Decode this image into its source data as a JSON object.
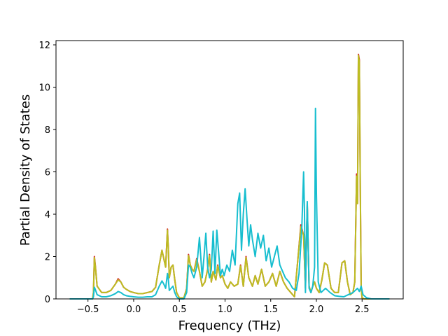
{
  "chart_data": {
    "type": "line",
    "title": "",
    "xlabel": "Frequency (THz)",
    "ylabel": "Partial Density of States",
    "xlim": [
      -0.85,
      2.95
    ],
    "ylim": [
      0,
      12.2
    ],
    "xticks": [
      -0.5,
      0.0,
      0.5,
      1.0,
      1.5,
      2.0,
      2.5
    ],
    "xtick_labels": [
      "−0.5",
      "0.0",
      "0.5",
      "1.0",
      "1.5",
      "2.0",
      "2.5"
    ],
    "yticks": [
      0,
      2,
      4,
      6,
      8,
      10,
      12
    ],
    "ytick_labels": [
      "0",
      "2",
      "4",
      "6",
      "8",
      "10",
      "12"
    ],
    "grid": false,
    "legend": "none",
    "series": [
      {
        "color": "#d62728",
        "x": [
          -0.7,
          -0.45,
          -0.44,
          -0.43,
          -0.42,
          -0.4,
          -0.35,
          -0.3,
          -0.25,
          -0.2,
          -0.17,
          -0.14,
          -0.11,
          -0.08,
          -0.04,
          0.0,
          0.05,
          0.1,
          0.15,
          0.2,
          0.24,
          0.28,
          0.31,
          0.33,
          0.35,
          0.37,
          0.38,
          0.39,
          0.41,
          0.43,
          0.45,
          0.47,
          0.5,
          0.55,
          0.58,
          0.6,
          0.62,
          0.64,
          0.66,
          0.69,
          0.72,
          0.75,
          0.78,
          0.81,
          0.83,
          0.85,
          0.87,
          0.9,
          0.92,
          0.95,
          0.97,
          1.0,
          1.03,
          1.06,
          1.1,
          1.14,
          1.17,
          1.2,
          1.23,
          1.26,
          1.28,
          1.3,
          1.33,
          1.36,
          1.4,
          1.44,
          1.48,
          1.52,
          1.56,
          1.6,
          1.64,
          1.68,
          1.72,
          1.76,
          1.8,
          1.83,
          1.86,
          1.88,
          1.9,
          1.92,
          1.94,
          1.96,
          1.98,
          2.0,
          2.03,
          2.06,
          2.09,
          2.12,
          2.16,
          2.2,
          2.24,
          2.28,
          2.31,
          2.34,
          2.37,
          2.4,
          2.42,
          2.44,
          2.45,
          2.46,
          2.47,
          2.48,
          2.49,
          2.5,
          2.52,
          2.55,
          2.6,
          2.7,
          2.8
        ],
        "values": [
          0,
          0,
          0.3,
          2.0,
          1.6,
          0.6,
          0.3,
          0.3,
          0.4,
          0.7,
          0.95,
          0.8,
          0.55,
          0.45,
          0.35,
          0.3,
          0.25,
          0.25,
          0.3,
          0.35,
          0.55,
          1.6,
          2.3,
          1.9,
          1.5,
          3.3,
          2.3,
          1.0,
          1.5,
          1.6,
          0.9,
          0.3,
          0.05,
          0.05,
          0.5,
          2.1,
          1.6,
          1.4,
          1.3,
          1.9,
          1.3,
          0.6,
          0.8,
          1.4,
          2.1,
          0.8,
          1.3,
          0.9,
          1.6,
          1.0,
          1.1,
          0.7,
          0.5,
          0.8,
          0.6,
          0.7,
          1.6,
          0.6,
          2.0,
          1.0,
          0.8,
          0.6,
          1.1,
          0.7,
          1.4,
          0.6,
          0.8,
          1.2,
          0.6,
          1.3,
          0.8,
          0.5,
          0.3,
          0.1,
          2.0,
          3.5,
          3.0,
          0.5,
          4.5,
          0.6,
          0.3,
          0.6,
          0.8,
          0.5,
          0.3,
          0.9,
          1.7,
          1.6,
          0.5,
          0.3,
          0.3,
          1.7,
          1.8,
          0.8,
          0.2,
          0.3,
          0.8,
          5.9,
          4.5,
          11.55,
          11.3,
          5.5,
          0.5,
          0.05,
          0,
          0,
          0,
          0,
          0
        ]
      },
      {
        "color": "#bcbd22",
        "x": [
          -0.7,
          -0.45,
          -0.44,
          -0.43,
          -0.42,
          -0.4,
          -0.35,
          -0.3,
          -0.25,
          -0.2,
          -0.17,
          -0.14,
          -0.11,
          -0.08,
          -0.04,
          0.0,
          0.05,
          0.1,
          0.15,
          0.2,
          0.24,
          0.28,
          0.31,
          0.33,
          0.35,
          0.37,
          0.38,
          0.39,
          0.41,
          0.43,
          0.45,
          0.47,
          0.5,
          0.55,
          0.58,
          0.6,
          0.62,
          0.64,
          0.66,
          0.69,
          0.72,
          0.75,
          0.78,
          0.81,
          0.83,
          0.85,
          0.87,
          0.9,
          0.92,
          0.95,
          0.97,
          1.0,
          1.03,
          1.06,
          1.1,
          1.14,
          1.17,
          1.2,
          1.23,
          1.26,
          1.28,
          1.3,
          1.33,
          1.36,
          1.4,
          1.44,
          1.48,
          1.52,
          1.56,
          1.6,
          1.64,
          1.68,
          1.72,
          1.76,
          1.8,
          1.83,
          1.86,
          1.88,
          1.9,
          1.92,
          1.94,
          1.96,
          1.98,
          2.0,
          2.03,
          2.06,
          2.09,
          2.12,
          2.16,
          2.2,
          2.24,
          2.28,
          2.31,
          2.34,
          2.37,
          2.4,
          2.42,
          2.44,
          2.45,
          2.46,
          2.47,
          2.48,
          2.49,
          2.5,
          2.52,
          2.55,
          2.6,
          2.7,
          2.8
        ],
        "values": [
          0,
          0,
          0.3,
          1.95,
          1.55,
          0.6,
          0.3,
          0.3,
          0.4,
          0.7,
          0.9,
          0.8,
          0.55,
          0.45,
          0.35,
          0.3,
          0.25,
          0.25,
          0.3,
          0.35,
          0.55,
          1.6,
          2.3,
          1.9,
          1.5,
          3.25,
          2.3,
          1.0,
          1.5,
          1.6,
          0.9,
          0.3,
          0.05,
          0.05,
          0.5,
          2.05,
          1.6,
          1.4,
          1.3,
          1.85,
          1.3,
          0.6,
          0.8,
          1.4,
          2.05,
          0.8,
          1.3,
          0.9,
          1.55,
          1.0,
          1.1,
          0.7,
          0.5,
          0.8,
          0.6,
          0.7,
          1.55,
          0.6,
          1.95,
          1.0,
          0.8,
          0.6,
          1.1,
          0.7,
          1.4,
          0.6,
          0.8,
          1.2,
          0.6,
          1.3,
          0.8,
          0.5,
          0.3,
          0.1,
          2.0,
          3.4,
          3.0,
          0.5,
          4.4,
          0.6,
          0.3,
          0.6,
          0.8,
          0.5,
          0.3,
          0.9,
          1.7,
          1.6,
          0.5,
          0.3,
          0.3,
          1.7,
          1.8,
          0.8,
          0.2,
          0.3,
          0.8,
          5.8,
          4.5,
          11.5,
          11.2,
          5.5,
          0.5,
          0.05,
          0,
          0,
          0,
          0,
          0
        ]
      },
      {
        "color": "#17becf",
        "x": [
          -0.7,
          -0.45,
          -0.44,
          -0.43,
          -0.42,
          -0.4,
          -0.35,
          -0.3,
          -0.25,
          -0.2,
          -0.17,
          -0.14,
          -0.11,
          -0.08,
          -0.04,
          0.0,
          0.05,
          0.1,
          0.15,
          0.2,
          0.24,
          0.28,
          0.31,
          0.33,
          0.35,
          0.37,
          0.38,
          0.39,
          0.41,
          0.43,
          0.45,
          0.47,
          0.5,
          0.55,
          0.58,
          0.6,
          0.62,
          0.64,
          0.66,
          0.69,
          0.72,
          0.75,
          0.77,
          0.79,
          0.81,
          0.83,
          0.85,
          0.87,
          0.89,
          0.91,
          0.93,
          0.95,
          0.97,
          0.99,
          1.02,
          1.05,
          1.08,
          1.11,
          1.14,
          1.16,
          1.18,
          1.2,
          1.22,
          1.24,
          1.26,
          1.28,
          1.3,
          1.33,
          1.36,
          1.39,
          1.42,
          1.45,
          1.48,
          1.51,
          1.54,
          1.57,
          1.6,
          1.63,
          1.66,
          1.7,
          1.74,
          1.78,
          1.81,
          1.84,
          1.86,
          1.87,
          1.88,
          1.9,
          1.92,
          1.94,
          1.96,
          1.98,
          1.99,
          2.0,
          2.02,
          2.05,
          2.1,
          2.15,
          2.2,
          2.25,
          2.3,
          2.35,
          2.4,
          2.45,
          2.47,
          2.49,
          2.51,
          2.55,
          2.6,
          2.7,
          2.8
        ],
        "values": [
          0,
          0,
          0.1,
          0.55,
          0.45,
          0.2,
          0.1,
          0.1,
          0.15,
          0.25,
          0.35,
          0.3,
          0.2,
          0.15,
          0.12,
          0.1,
          0.08,
          0.08,
          0.1,
          0.1,
          0.2,
          0.6,
          0.85,
          0.7,
          0.5,
          1.2,
          0.9,
          0.4,
          0.5,
          0.6,
          0.3,
          0.1,
          0.0,
          0.0,
          0.3,
          1.6,
          1.5,
          1.2,
          1.0,
          1.5,
          2.9,
          1.0,
          2.0,
          3.1,
          1.5,
          1.0,
          1.4,
          3.2,
          1.2,
          3.25,
          2.2,
          1.1,
          1.4,
          1.1,
          1.6,
          1.3,
          2.3,
          1.6,
          4.5,
          5.0,
          2.3,
          4.0,
          5.2,
          3.8,
          2.5,
          3.5,
          2.8,
          2.0,
          3.1,
          2.4,
          3.0,
          1.8,
          2.4,
          1.5,
          2.0,
          2.5,
          1.6,
          1.3,
          1.0,
          0.8,
          0.5,
          0.4,
          1.2,
          3.3,
          6.0,
          4.0,
          0.3,
          4.6,
          0.5,
          0.3,
          0.6,
          1.5,
          9.0,
          5.0,
          0.8,
          0.3,
          0.5,
          0.3,
          0.15,
          0.12,
          0.1,
          0.2,
          0.3,
          0.5,
          0.35,
          0.6,
          0.2,
          0.05,
          0,
          0,
          0
        ]
      }
    ]
  }
}
